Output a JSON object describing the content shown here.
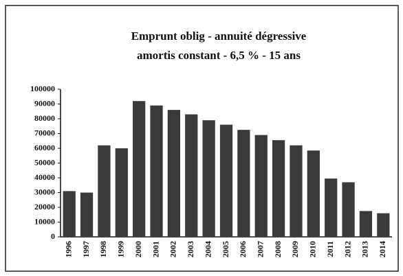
{
  "chart_data": {
    "type": "bar",
    "title": [
      "Emprunt oblig - annuité dégressive",
      "amortis constant - 6,5 % - 15 ans"
    ],
    "categories": [
      "1996",
      "1997",
      "1998",
      "1999",
      "2000",
      "2001",
      "2002",
      "2003",
      "2004",
      "2005",
      "2006",
      "2007",
      "2008",
      "2009",
      "2010",
      "2011",
      "2012",
      "2013",
      "2014"
    ],
    "values": [
      31000,
      30000,
      62000,
      60000,
      92000,
      89000,
      86000,
      83000,
      79000,
      76000,
      72500,
      69000,
      65500,
      62000,
      58500,
      39500,
      37000,
      17500,
      16000
    ],
    "color": "#3a3a3a",
    "ylim": [
      0,
      100000
    ],
    "yticks": [
      0,
      10000,
      20000,
      30000,
      40000,
      50000,
      60000,
      70000,
      80000,
      90000,
      100000
    ],
    "grid": false
  }
}
